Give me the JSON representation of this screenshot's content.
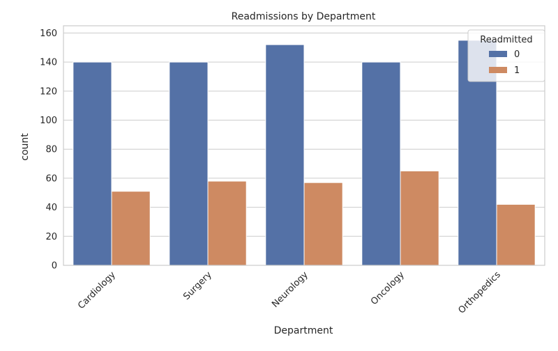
{
  "chart_data": {
    "type": "bar",
    "title": "Readmissions by Department",
    "xlabel": "Department",
    "ylabel": "count",
    "categories": [
      "Cardiology",
      "Surgery",
      "Neurology",
      "Oncology",
      "Orthopedics"
    ],
    "series": [
      {
        "name": "0",
        "values": [
          140,
          140,
          152,
          140,
          155
        ]
      },
      {
        "name": "1",
        "values": [
          51,
          58,
          57,
          65,
          42
        ]
      }
    ],
    "ylim": [
      0,
      165
    ],
    "yticks": [
      0,
      20,
      40,
      60,
      80,
      100,
      120,
      140,
      160
    ],
    "grid": true,
    "legend": {
      "title": "Readmitted",
      "placement": "top-right"
    },
    "colors": [
      "#5471a6",
      "#ce8a62"
    ]
  }
}
